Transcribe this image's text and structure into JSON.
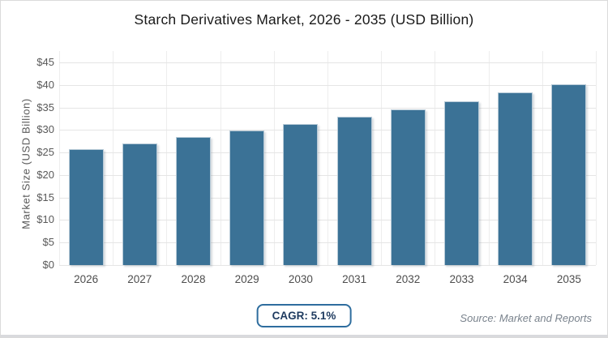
{
  "chart_data": {
    "type": "bar",
    "title": "Starch Derivatives Market, 2026 - 2035 (USD Billion)",
    "categories": [
      "2026",
      "2027",
      "2028",
      "2029",
      "2030",
      "2031",
      "2032",
      "2033",
      "2034",
      "2035"
    ],
    "values": [
      25.7,
      27.0,
      28.4,
      29.8,
      31.4,
      33.0,
      34.6,
      36.4,
      38.3,
      40.2
    ],
    "xlabel": "",
    "ylabel": "Market Size (USD Billion)",
    "ylim": [
      0,
      45
    ],
    "ytick_step": 5,
    "ytick_labels": [
      "$0",
      "$5",
      "$10",
      "$15",
      "$20",
      "$25",
      "$30",
      "$35",
      "$40",
      "$45"
    ],
    "grid": true,
    "legend": null,
    "bar_color": "#3b7296"
  },
  "footer": {
    "cagr_label": "CAGR: 5.1%",
    "source": "Source: Market and Reports"
  },
  "colors": {
    "bar": "#3b7296",
    "bar_edge": "#b7cad7",
    "grid_horizontal": "#e5e5e5",
    "grid_vertical": "#ededed",
    "axis_text": "#595959",
    "xlabel_text": "#4d4d4d",
    "title_text": "#1a1a1a",
    "badge_border": "#2e6d9e",
    "badge_text": "#1e3a5f",
    "source_text": "#7a838d",
    "bottom_strip": "#d9dadd"
  }
}
